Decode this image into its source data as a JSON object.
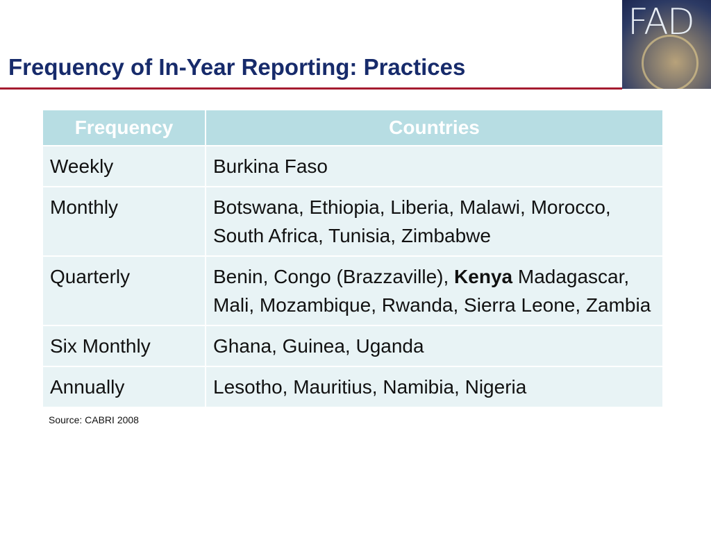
{
  "header": {
    "title": "Frequency of In-Year Reporting: Practices",
    "logo": "FAD"
  },
  "table": {
    "columns": [
      "Frequency",
      "Countries"
    ],
    "rows": [
      {
        "frequency": "Weekly",
        "countries": [
          "Burkina Faso"
        ]
      },
      {
        "frequency": "Monthly",
        "countries": [
          "Botswana, Ethiopia, Liberia, Malawi, Morocco, South Africa, Tunisia, Zimbabwe"
        ]
      },
      {
        "frequency": "Quarterly",
        "countries": [
          "Benin, Congo (Brazzaville), ",
          {
            "text": "Kenya",
            "bold": true
          },
          " Madagascar, Mali, Mozambique, Rwanda, Sierra Leone, Zambia"
        ]
      },
      {
        "frequency": "Six Monthly",
        "countries": [
          "Ghana, Guinea, Uganda"
        ]
      },
      {
        "frequency": "Annually",
        "countries": [
          "Lesotho, Mauritius, Namibia, Nigeria"
        ]
      }
    ]
  },
  "source": "Source: CABRI 2008"
}
